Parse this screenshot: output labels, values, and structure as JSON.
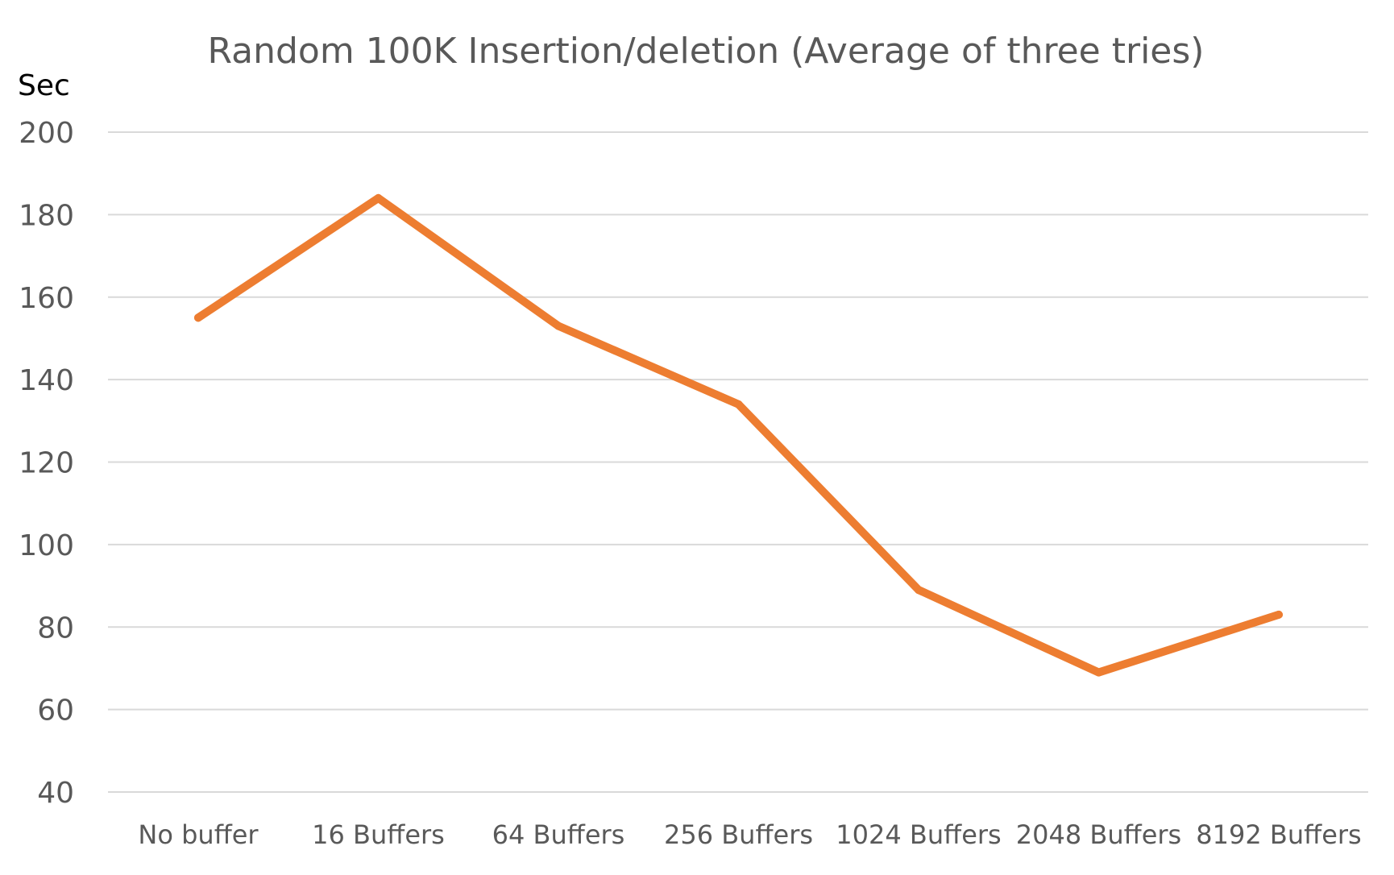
{
  "chart_data": {
    "type": "line",
    "title": "Random 100K Insertion/deletion (Average of three tries)",
    "xlabel": "",
    "ylabel": "Sec",
    "categories": [
      "No buffer",
      "16 Buffers",
      "64 Buffers",
      "256 Buffers",
      "1024 Buffers",
      "2048 Buffers",
      "8192 Buffers"
    ],
    "series": [
      {
        "values": [
          155,
          184,
          153,
          134,
          89,
          69,
          83
        ],
        "color": "#ED7D31"
      }
    ],
    "ylim": [
      40,
      200
    ],
    "yticks": [
      200,
      180,
      160,
      140,
      120,
      100,
      80,
      60,
      40
    ],
    "grid": true,
    "legend": "none"
  }
}
